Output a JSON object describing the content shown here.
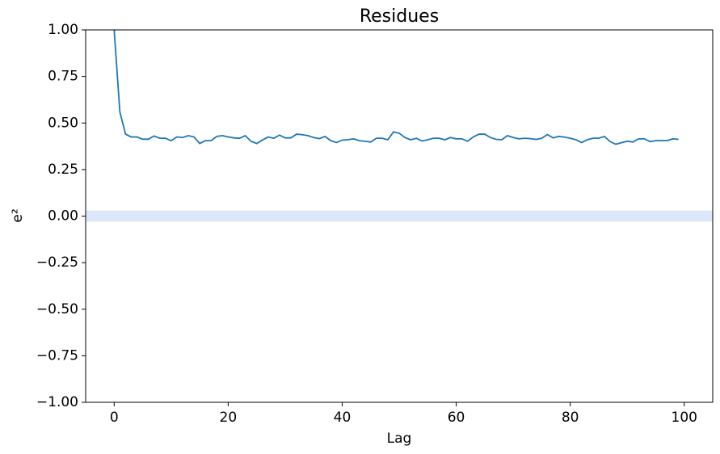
{
  "chart_data": {
    "type": "line",
    "title": "Residues",
    "xlabel": "Lag",
    "ylabel": "e²",
    "x": [
      0,
      1,
      2,
      3,
      4,
      5,
      6,
      7,
      8,
      9,
      10,
      11,
      12,
      13,
      14,
      15,
      16,
      17,
      18,
      19,
      20,
      21,
      22,
      23,
      24,
      25,
      26,
      27,
      28,
      29,
      30,
      31,
      32,
      33,
      34,
      35,
      36,
      37,
      38,
      39,
      40,
      41,
      42,
      43,
      44,
      45,
      46,
      47,
      48,
      49,
      50,
      51,
      52,
      53,
      54,
      55,
      56,
      57,
      58,
      59,
      60,
      61,
      62,
      63,
      64,
      65,
      66,
      67,
      68,
      69,
      70,
      71,
      72,
      73,
      74,
      75,
      76,
      77,
      78,
      79,
      80,
      81,
      82,
      83,
      84,
      85,
      86,
      87,
      88,
      89,
      90,
      91,
      92,
      93,
      94,
      95,
      96,
      97,
      98,
      99
    ],
    "series": [
      {
        "color": "#1f77b4",
        "values": [
          1.0,
          0.56,
          0.44,
          0.425,
          0.425,
          0.413,
          0.413,
          0.43,
          0.418,
          0.418,
          0.405,
          0.425,
          0.422,
          0.432,
          0.425,
          0.39,
          0.405,
          0.405,
          0.428,
          0.432,
          0.425,
          0.42,
          0.418,
          0.432,
          0.402,
          0.39,
          0.408,
          0.425,
          0.418,
          0.435,
          0.42,
          0.42,
          0.44,
          0.437,
          0.432,
          0.422,
          0.416,
          0.428,
          0.405,
          0.395,
          0.408,
          0.41,
          0.415,
          0.405,
          0.402,
          0.398,
          0.418,
          0.418,
          0.41,
          0.452,
          0.445,
          0.422,
          0.41,
          0.418,
          0.403,
          0.41,
          0.418,
          0.418,
          0.41,
          0.422,
          0.415,
          0.415,
          0.402,
          0.425,
          0.44,
          0.44,
          0.422,
          0.412,
          0.41,
          0.432,
          0.422,
          0.415,
          0.418,
          0.416,
          0.412,
          0.418,
          0.438,
          0.42,
          0.428,
          0.424,
          0.418,
          0.41,
          0.395,
          0.41,
          0.418,
          0.418,
          0.428,
          0.4,
          0.386,
          0.394,
          0.402,
          0.398,
          0.415,
          0.415,
          0.4,
          0.405,
          0.405,
          0.405,
          0.415,
          0.412
        ]
      }
    ],
    "confidence_band": [
      -0.03,
      0.03
    ],
    "band_color": "#dde7fb",
    "xlim": [
      -5,
      105
    ],
    "ylim": [
      -1,
      1
    ],
    "xticks": [
      0,
      20,
      40,
      60,
      80,
      100
    ],
    "yticks": [
      {
        "value": -1,
        "label": "−1.00"
      },
      {
        "value": -0.75,
        "label": "−0.75"
      },
      {
        "value": -0.5,
        "label": "−0.50"
      },
      {
        "value": -0.25,
        "label": "−0.25"
      },
      {
        "value": 0,
        "label": "0.00"
      },
      {
        "value": 0.25,
        "label": "0.25"
      },
      {
        "value": 0.5,
        "label": "0.50"
      },
      {
        "value": 0.75,
        "label": "0.75"
      },
      {
        "value": 1,
        "label": "1.00"
      }
    ]
  }
}
